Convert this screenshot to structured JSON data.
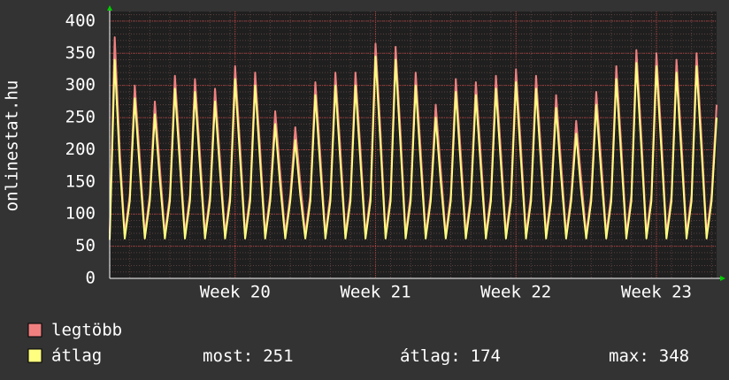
{
  "chart_data": {
    "type": "line",
    "ylabel": "onlinestat.hu",
    "categories": [
      null,
      null,
      null,
      null,
      null,
      null,
      null,
      null,
      null,
      null,
      null,
      null,
      null,
      null,
      null,
      null,
      null,
      null,
      null,
      null,
      null,
      null,
      null,
      null,
      null,
      "Week 20",
      null,
      null,
      null,
      null,
      null,
      null,
      null,
      null,
      null,
      null,
      null,
      null,
      null,
      null,
      null,
      null,
      null,
      null,
      null,
      null,
      null,
      null,
      null,
      null,
      null,
      null,
      null,
      "Week 21",
      null,
      null,
      null,
      null,
      null,
      null,
      null,
      null,
      null,
      null,
      null,
      null,
      null,
      null,
      null,
      null,
      null,
      null,
      null,
      null,
      null,
      null,
      null,
      null,
      null,
      null,
      null,
      "Week 22",
      null,
      null,
      null,
      null,
      null,
      null,
      null,
      null,
      null,
      null,
      null,
      null,
      null,
      null,
      null,
      null,
      null,
      null,
      null,
      null,
      null,
      null,
      null,
      null,
      null,
      null,
      null,
      "Week 23",
      null,
      null,
      null,
      null,
      null,
      null,
      null,
      null,
      null,
      null,
      null,
      null
    ],
    "series": [
      {
        "name": "legtöbb",
        "color": "#f08080",
        "values": [
          70,
          375,
          200,
          68,
          130,
          300,
          188,
          68,
          130,
          275,
          173,
          68,
          130,
          315,
          197,
          68,
          130,
          310,
          194,
          68,
          130,
          295,
          185,
          68,
          130,
          330,
          206,
          68,
          130,
          320,
          200,
          68,
          130,
          260,
          164,
          68,
          130,
          235,
          149,
          68,
          130,
          305,
          191,
          68,
          130,
          320,
          200,
          68,
          130,
          320,
          200,
          68,
          130,
          365,
          227,
          68,
          130,
          360,
          224,
          68,
          130,
          320,
          200,
          68,
          130,
          270,
          170,
          68,
          130,
          310,
          194,
          68,
          130,
          305,
          191,
          68,
          130,
          315,
          197,
          68,
          130,
          325,
          203,
          68,
          130,
          315,
          197,
          68,
          130,
          285,
          179,
          68,
          130,
          245,
          155,
          68,
          130,
          290,
          182,
          68,
          130,
          330,
          206,
          68,
          130,
          355,
          221,
          68,
          130,
          350,
          218,
          68,
          130,
          340,
          212,
          68,
          130,
          350,
          218,
          68,
          130,
          270
        ]
      },
      {
        "name": "átlag",
        "color": "#ffff80",
        "values": [
          60,
          340,
          180,
          62,
          120,
          280,
          168,
          62,
          120,
          255,
          153,
          62,
          120,
          295,
          177,
          62,
          120,
          290,
          174,
          62,
          120,
          275,
          165,
          62,
          120,
          310,
          186,
          62,
          120,
          300,
          180,
          62,
          120,
          240,
          144,
          62,
          120,
          215,
          129,
          62,
          120,
          285,
          171,
          62,
          120,
          300,
          180,
          62,
          120,
          300,
          180,
          62,
          120,
          345,
          207,
          62,
          120,
          340,
          204,
          62,
          120,
          300,
          180,
          62,
          120,
          250,
          150,
          62,
          120,
          290,
          174,
          62,
          120,
          285,
          171,
          62,
          120,
          295,
          177,
          62,
          120,
          305,
          183,
          62,
          120,
          295,
          177,
          62,
          120,
          265,
          159,
          62,
          120,
          225,
          135,
          62,
          120,
          270,
          162,
          62,
          120,
          310,
          186,
          62,
          120,
          335,
          201,
          62,
          120,
          330,
          198,
          62,
          120,
          320,
          192,
          62,
          120,
          330,
          198,
          62,
          120,
          250
        ]
      }
    ],
    "ylim": [
      0,
      415
    ],
    "yticks": [
      0,
      50,
      100,
      150,
      200,
      250,
      300,
      350,
      400
    ],
    "grid": true,
    "stats": [
      {
        "label": "most:",
        "value": 251
      },
      {
        "label": "átlag:",
        "value": 174
      },
      {
        "label": "max:",
        "value": 348
      }
    ]
  }
}
